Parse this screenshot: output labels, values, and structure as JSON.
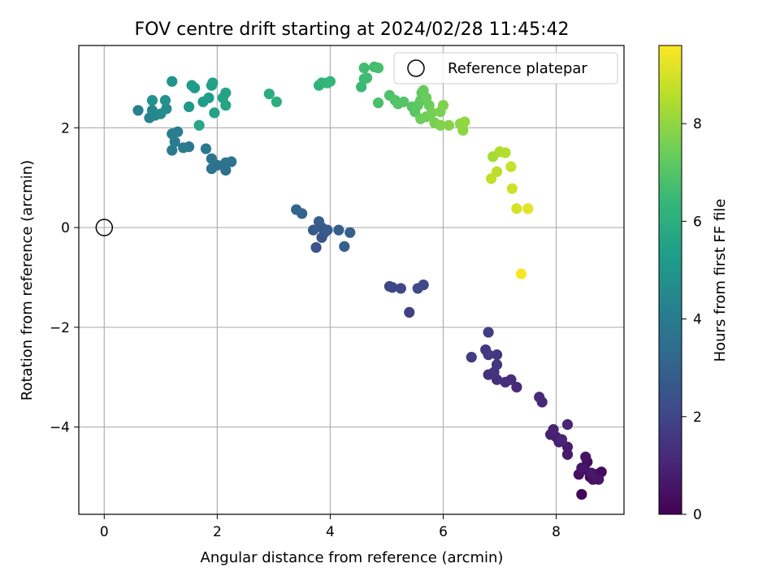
{
  "chart_data": {
    "type": "scatter",
    "title": "FOV centre drift starting at 2024/02/28 11:45:42",
    "xlabel": "Angular distance from reference (arcmin)",
    "ylabel": "Rotation from reference (arcmin)",
    "xlim": [
      -0.45,
      9.2
    ],
    "ylim": [
      -5.75,
      3.65
    ],
    "xticks": [
      0,
      2,
      4,
      6,
      8
    ],
    "yticks": [
      -4,
      -2,
      0,
      2
    ],
    "grid": true,
    "legend": {
      "position": "top-right",
      "entries": [
        "Reference platepar"
      ]
    },
    "reference_point": {
      "x": 0,
      "y": 0
    },
    "colorbar": {
      "label": "Hours from first FF file",
      "range": [
        0,
        9.6
      ],
      "ticks": [
        0,
        2,
        4,
        6,
        8
      ],
      "colormap": "viridis",
      "stops": [
        "#440154",
        "#482777",
        "#3e4a89",
        "#31688e",
        "#26828e",
        "#1f9e89",
        "#35b779",
        "#6ece58",
        "#b5de2b",
        "#fde725"
      ]
    },
    "points": [
      {
        "x": 8.45,
        "y": -5.35,
        "h": 0.1
      },
      {
        "x": 8.6,
        "y": -5.0,
        "h": 0.15
      },
      {
        "x": 8.7,
        "y": -4.95,
        "h": 0.2
      },
      {
        "x": 8.8,
        "y": -4.9,
        "h": 0.25
      },
      {
        "x": 8.5,
        "y": -4.85,
        "h": 0.3
      },
      {
        "x": 8.55,
        "y": -4.7,
        "h": 0.35
      },
      {
        "x": 8.4,
        "y": -4.95,
        "h": 0.4
      },
      {
        "x": 8.65,
        "y": -5.05,
        "h": 0.45
      },
      {
        "x": 8.52,
        "y": -4.6,
        "h": 0.5
      },
      {
        "x": 8.75,
        "y": -5.05,
        "h": 0.55
      },
      {
        "x": 8.45,
        "y": -4.82,
        "h": 0.6
      },
      {
        "x": 8.62,
        "y": -4.92,
        "h": 0.65
      },
      {
        "x": 8.2,
        "y": -4.55,
        "h": 0.7
      },
      {
        "x": 8.2,
        "y": -4.4,
        "h": 0.75
      },
      {
        "x": 8.05,
        "y": -4.3,
        "h": 0.8
      },
      {
        "x": 8.0,
        "y": -4.2,
        "h": 0.85
      },
      {
        "x": 7.9,
        "y": -4.15,
        "h": 0.9
      },
      {
        "x": 7.95,
        "y": -4.05,
        "h": 0.95
      },
      {
        "x": 8.1,
        "y": -4.25,
        "h": 1.0
      },
      {
        "x": 8.2,
        "y": -3.95,
        "h": 1.05
      },
      {
        "x": 7.75,
        "y": -3.5,
        "h": 1.1
      },
      {
        "x": 7.7,
        "y": -3.4,
        "h": 1.15
      },
      {
        "x": 7.3,
        "y": -3.2,
        "h": 1.2
      },
      {
        "x": 7.2,
        "y": -3.05,
        "h": 1.25
      },
      {
        "x": 7.1,
        "y": -3.1,
        "h": 1.3
      },
      {
        "x": 6.95,
        "y": -3.05,
        "h": 1.35
      },
      {
        "x": 6.8,
        "y": -2.95,
        "h": 1.4
      },
      {
        "x": 6.9,
        "y": -2.9,
        "h": 1.45
      },
      {
        "x": 6.95,
        "y": -2.75,
        "h": 1.5
      },
      {
        "x": 6.95,
        "y": -2.55,
        "h": 1.55
      },
      {
        "x": 6.75,
        "y": -2.45,
        "h": 1.6
      },
      {
        "x": 6.8,
        "y": -2.55,
        "h": 1.65
      },
      {
        "x": 6.5,
        "y": -2.6,
        "h": 1.7
      },
      {
        "x": 6.8,
        "y": -2.1,
        "h": 1.75
      },
      {
        "x": 5.4,
        "y": -1.7,
        "h": 1.9
      },
      {
        "x": 5.1,
        "y": -1.2,
        "h": 2.0
      },
      {
        "x": 5.25,
        "y": -1.22,
        "h": 2.05
      },
      {
        "x": 5.05,
        "y": -1.18,
        "h": 2.1
      },
      {
        "x": 5.55,
        "y": -1.22,
        "h": 2.15
      },
      {
        "x": 5.65,
        "y": -1.15,
        "h": 2.2
      },
      {
        "x": 3.75,
        "y": -0.4,
        "h": 2.5
      },
      {
        "x": 3.85,
        "y": -0.2,
        "h": 2.55
      },
      {
        "x": 3.9,
        "y": -0.1,
        "h": 2.6
      },
      {
        "x": 3.7,
        "y": -0.05,
        "h": 2.65
      },
      {
        "x": 3.85,
        "y": 0.0,
        "h": 2.7
      },
      {
        "x": 3.95,
        "y": -0.05,
        "h": 2.75
      },
      {
        "x": 3.8,
        "y": 0.12,
        "h": 2.8
      },
      {
        "x": 4.15,
        "y": -0.05,
        "h": 2.85
      },
      {
        "x": 4.35,
        "y": -0.1,
        "h": 2.9
      },
      {
        "x": 4.25,
        "y": -0.38,
        "h": 2.95
      },
      {
        "x": 3.5,
        "y": 0.28,
        "h": 3.0
      },
      {
        "x": 3.4,
        "y": 0.36,
        "h": 3.05
      },
      {
        "x": 2.15,
        "y": 1.15,
        "h": 3.5
      },
      {
        "x": 2.0,
        "y": 1.25,
        "h": 3.55
      },
      {
        "x": 1.9,
        "y": 1.18,
        "h": 3.6
      },
      {
        "x": 2.15,
        "y": 1.3,
        "h": 3.65
      },
      {
        "x": 2.25,
        "y": 1.32,
        "h": 3.7
      },
      {
        "x": 1.9,
        "y": 1.38,
        "h": 3.75
      },
      {
        "x": 1.8,
        "y": 1.58,
        "h": 3.8
      },
      {
        "x": 1.5,
        "y": 1.62,
        "h": 3.85
      },
      {
        "x": 1.4,
        "y": 1.6,
        "h": 3.9
      },
      {
        "x": 1.2,
        "y": 1.55,
        "h": 3.95
      },
      {
        "x": 1.25,
        "y": 1.72,
        "h": 4.0
      },
      {
        "x": 1.3,
        "y": 1.92,
        "h": 4.05
      },
      {
        "x": 1.2,
        "y": 1.88,
        "h": 4.1
      },
      {
        "x": 0.6,
        "y": 2.35,
        "h": 4.2
      },
      {
        "x": 0.8,
        "y": 2.2,
        "h": 4.3
      },
      {
        "x": 0.9,
        "y": 2.25,
        "h": 4.4
      },
      {
        "x": 0.85,
        "y": 2.35,
        "h": 4.5
      },
      {
        "x": 1.0,
        "y": 2.28,
        "h": 4.6
      },
      {
        "x": 1.1,
        "y": 2.38,
        "h": 4.7
      },
      {
        "x": 1.08,
        "y": 2.55,
        "h": 4.8
      },
      {
        "x": 0.85,
        "y": 2.55,
        "h": 4.9
      },
      {
        "x": 1.2,
        "y": 2.93,
        "h": 5.0
      },
      {
        "x": 1.5,
        "y": 2.42,
        "h": 5.1
      },
      {
        "x": 1.55,
        "y": 2.85,
        "h": 5.2
      },
      {
        "x": 1.6,
        "y": 2.8,
        "h": 5.25
      },
      {
        "x": 1.75,
        "y": 2.52,
        "h": 5.3
      },
      {
        "x": 1.85,
        "y": 2.6,
        "h": 5.35
      },
      {
        "x": 1.9,
        "y": 2.85,
        "h": 5.4
      },
      {
        "x": 1.92,
        "y": 2.9,
        "h": 5.45
      },
      {
        "x": 1.95,
        "y": 2.3,
        "h": 5.5
      },
      {
        "x": 2.1,
        "y": 2.6,
        "h": 5.55
      },
      {
        "x": 2.15,
        "y": 2.7,
        "h": 5.6
      },
      {
        "x": 2.15,
        "y": 2.45,
        "h": 5.65
      },
      {
        "x": 1.68,
        "y": 2.05,
        "h": 5.7
      },
      {
        "x": 2.92,
        "y": 2.68,
        "h": 5.9
      },
      {
        "x": 3.05,
        "y": 2.52,
        "h": 6.0
      },
      {
        "x": 3.8,
        "y": 2.85,
        "h": 6.2
      },
      {
        "x": 3.85,
        "y": 2.9,
        "h": 6.25
      },
      {
        "x": 3.95,
        "y": 2.9,
        "h": 6.3
      },
      {
        "x": 4.0,
        "y": 2.93,
        "h": 6.35
      },
      {
        "x": 4.55,
        "y": 2.82,
        "h": 6.5
      },
      {
        "x": 4.6,
        "y": 2.98,
        "h": 6.55
      },
      {
        "x": 4.65,
        "y": 3.0,
        "h": 6.6
      },
      {
        "x": 4.6,
        "y": 3.2,
        "h": 6.65
      },
      {
        "x": 4.78,
        "y": 3.22,
        "h": 6.7
      },
      {
        "x": 4.85,
        "y": 3.2,
        "h": 6.75
      },
      {
        "x": 4.85,
        "y": 2.5,
        "h": 6.8
      },
      {
        "x": 5.05,
        "y": 2.65,
        "h": 6.85
      },
      {
        "x": 5.15,
        "y": 2.55,
        "h": 6.9
      },
      {
        "x": 5.2,
        "y": 2.48,
        "h": 6.95
      },
      {
        "x": 5.3,
        "y": 2.52,
        "h": 7.0
      },
      {
        "x": 5.45,
        "y": 2.42,
        "h": 7.05
      },
      {
        "x": 5.5,
        "y": 2.32,
        "h": 7.1
      },
      {
        "x": 5.55,
        "y": 2.45,
        "h": 7.15
      },
      {
        "x": 5.6,
        "y": 2.55,
        "h": 7.2
      },
      {
        "x": 5.62,
        "y": 2.7,
        "h": 7.25
      },
      {
        "x": 5.65,
        "y": 2.75,
        "h": 7.3
      },
      {
        "x": 5.7,
        "y": 2.6,
        "h": 7.35
      },
      {
        "x": 5.75,
        "y": 2.45,
        "h": 7.4
      },
      {
        "x": 5.6,
        "y": 2.18,
        "h": 7.45
      },
      {
        "x": 5.7,
        "y": 2.22,
        "h": 7.5
      },
      {
        "x": 5.8,
        "y": 2.3,
        "h": 7.55
      },
      {
        "x": 5.85,
        "y": 2.1,
        "h": 7.6
      },
      {
        "x": 5.95,
        "y": 2.32,
        "h": 7.65
      },
      {
        "x": 6.0,
        "y": 2.45,
        "h": 7.7
      },
      {
        "x": 5.95,
        "y": 2.05,
        "h": 7.75
      },
      {
        "x": 6.1,
        "y": 2.05,
        "h": 7.8
      },
      {
        "x": 6.3,
        "y": 2.08,
        "h": 7.9
      },
      {
        "x": 6.35,
        "y": 1.95,
        "h": 7.95
      },
      {
        "x": 6.38,
        "y": 2.12,
        "h": 8.0
      },
      {
        "x": 6.88,
        "y": 1.42,
        "h": 8.3
      },
      {
        "x": 7.0,
        "y": 1.52,
        "h": 8.4
      },
      {
        "x": 7.1,
        "y": 1.5,
        "h": 8.5
      },
      {
        "x": 6.95,
        "y": 1.12,
        "h": 8.6
      },
      {
        "x": 6.85,
        "y": 0.98,
        "h": 8.7
      },
      {
        "x": 7.2,
        "y": 1.22,
        "h": 8.8
      },
      {
        "x": 7.22,
        "y": 0.78,
        "h": 8.9
      },
      {
        "x": 7.3,
        "y": 0.38,
        "h": 9.0
      },
      {
        "x": 7.5,
        "y": 0.38,
        "h": 9.2
      },
      {
        "x": 7.38,
        "y": -0.93,
        "h": 9.5
      }
    ]
  }
}
